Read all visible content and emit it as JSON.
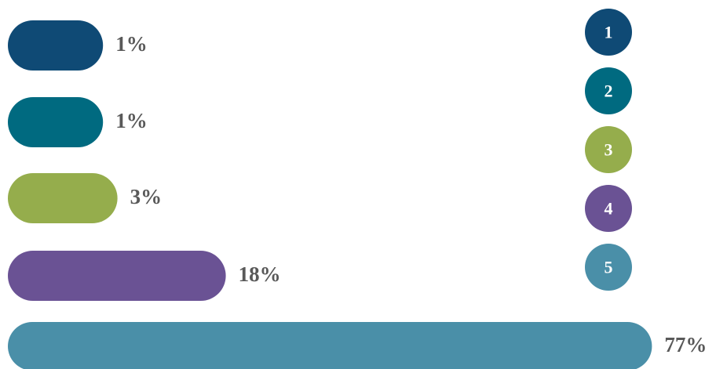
{
  "chart_data": {
    "type": "bar",
    "orientation": "horizontal",
    "categories": [
      "1",
      "2",
      "3",
      "4",
      "5"
    ],
    "values": [
      1,
      1,
      3,
      18,
      77
    ],
    "value_labels": [
      "1%",
      "1%",
      "3%",
      "18%",
      "77%"
    ],
    "colors": [
      "#0f4a75",
      "#006a80",
      "#95ad4c",
      "#6a5294",
      "#4a8fa8"
    ]
  }
}
